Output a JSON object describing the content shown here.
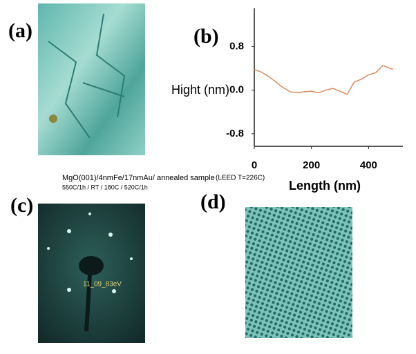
{
  "panels": {
    "a": "(a)",
    "b": "(b)",
    "c": "(c)",
    "d": "(d)"
  },
  "caption": {
    "line1": "MgO(001)/4nmFe/17nmAu/ annealed sample",
    "leed": "(LEED T=226C)",
    "line2": "550C/1h    /    RT     /  180C     /  520C/1h"
  },
  "leed_label": "11_09_83eV",
  "chart_data": {
    "type": "line",
    "xlabel": "Length (nm)",
    "ylabel": "Hight (nm)",
    "x": [
      0,
      25,
      50,
      75,
      100,
      125,
      150,
      175,
      200,
      225,
      250,
      275,
      300,
      325,
      350,
      375,
      400,
      425,
      450,
      475,
      485
    ],
    "series": [
      {
        "color": "#d98a5a",
        "values": [
          0.38,
          0.33,
          0.25,
          0.15,
          0.05,
          -0.03,
          -0.05,
          -0.03,
          -0.02,
          -0.05,
          0.0,
          0.03,
          -0.02,
          -0.08,
          0.15,
          0.2,
          0.28,
          0.32,
          0.45,
          0.4,
          0.38
        ]
      }
    ],
    "xlim": [
      0,
      520
    ],
    "xticks": [
      0,
      200,
      400
    ],
    "ylim": [
      -1.03,
      1.5
    ],
    "yticks": [
      0.8,
      {
        "value": 0,
        "label": "0.0"
      },
      -0.8
    ]
  }
}
